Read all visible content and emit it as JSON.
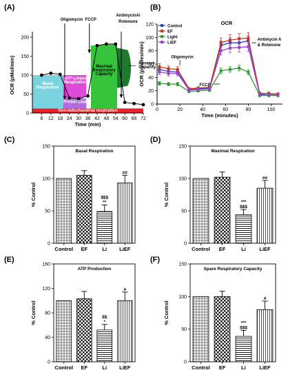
{
  "chart_data": [
    {
      "panel": "(A)",
      "type": "line",
      "ylabel": "OCR (pMol/min)",
      "xlabel": "Time (min)",
      "ylim": [
        0,
        200
      ],
      "xlim": [
        0,
        72
      ],
      "yticks": [
        "0",
        "50",
        "100",
        "150",
        "200"
      ],
      "xticks": [
        "6",
        "12",
        "18",
        "24",
        "30",
        "36",
        "42",
        "48",
        "54",
        "60",
        "66",
        "72"
      ],
      "x": [
        6,
        12,
        18,
        24,
        30,
        36,
        42,
        48,
        54,
        60,
        66,
        72
      ],
      "values": [
        100,
        105,
        102,
        40,
        38,
        45,
        178,
        182,
        182,
        28,
        25,
        22
      ],
      "regions": {
        "basal": "Basal Respiration",
        "atp": "ATP-Linked Respiration",
        "proton": "Proton Leak",
        "maximal": "Maximal Respiratory Capacity",
        "reserve": "Reserve Capacity",
        "nonmito": "Non-mitochondrial respiration"
      },
      "injections": [
        "Oligomycin",
        "FCCP",
        "AntimycinA/ Rotenone"
      ],
      "colors": {
        "basal": "#7ad4e0",
        "atp": "#e04ad8",
        "proton": "#b06ce0",
        "maximal": "#36c43c",
        "reserve": "#1e7a2e",
        "nonmito": "#e8222a"
      }
    },
    {
      "panel": "(B)",
      "type": "line",
      "title": "OCR",
      "ylabel": "OCR (pmoles/min)",
      "xlabel": "Time (minutes)",
      "ylim": [
        0,
        120
      ],
      "xlim": [
        0,
        110
      ],
      "yticks": [
        "0",
        "20",
        "40",
        "60",
        "80",
        "100",
        "120"
      ],
      "xticks": [
        "0",
        "20",
        "40",
        "60",
        "80",
        "100"
      ],
      "x": [
        2,
        10,
        18,
        28,
        36,
        46,
        56,
        64,
        72,
        80,
        90,
        98,
        106
      ],
      "series": [
        {
          "name": "Control",
          "color": "#2b3fcf",
          "values": [
            52,
            49,
            48,
            22,
            23,
            24,
            88,
            92,
            92,
            95,
            15,
            14,
            14
          ]
        },
        {
          "name": "EF",
          "color": "#c8371e",
          "values": [
            56,
            53,
            52,
            23,
            24,
            25,
            92,
            96,
            98,
            99,
            16,
            16,
            15
          ]
        },
        {
          "name": "Light",
          "color": "#2f9a2f",
          "values": [
            31,
            30,
            30,
            19,
            20,
            21,
            50,
            52,
            54,
            48,
            13,
            13,
            13
          ]
        },
        {
          "name": "LiEF",
          "color": "#9a3fd0",
          "values": [
            48,
            46,
            46,
            21,
            22,
            23,
            80,
            84,
            85,
            86,
            14,
            14,
            14
          ]
        }
      ],
      "annotations": [
        "Oligomycin",
        "FCCP",
        "Antimycin A & Rotenone"
      ]
    },
    {
      "panel": "(C)",
      "type": "bar",
      "title": "Basal Respiration",
      "ylabel": "% Control",
      "categories": [
        "Control",
        "EF",
        "Li",
        "LiEF"
      ],
      "values": [
        100,
        105,
        49,
        93
      ],
      "errors": [
        0,
        7,
        10,
        12
      ],
      "ylim": [
        0,
        150
      ],
      "yticks": [
        "0",
        "50",
        "100",
        "150"
      ],
      "signif": [
        "",
        "",
        "$$$\n**",
        "##"
      ]
    },
    {
      "panel": "(D)",
      "type": "bar",
      "title": "Maximal Respiration",
      "ylabel": "% Control",
      "categories": [
        "Control",
        "EF",
        "Li",
        "LiEF"
      ],
      "values": [
        100,
        102,
        44,
        85
      ],
      "errors": [
        0,
        8,
        8,
        12
      ],
      "ylim": [
        0,
        150
      ],
      "yticks": [
        "0",
        "50",
        "100",
        "150"
      ],
      "signif": [
        "",
        "",
        "***\n$$$",
        "##"
      ]
    },
    {
      "panel": "(E)",
      "type": "bar",
      "title": "ATP Production",
      "ylabel": "% Control",
      "categories": [
        "Control",
        "EF",
        "Li",
        "LiEF"
      ],
      "values": [
        100,
        103,
        52,
        100
      ],
      "errors": [
        0,
        12,
        9,
        14
      ],
      "ylim": [
        0,
        160
      ],
      "yticks": [
        "0",
        "40",
        "80",
        "120",
        "160"
      ],
      "signif": [
        "",
        "",
        "$$\n*",
        "#"
      ]
    },
    {
      "panel": "(F)",
      "type": "bar",
      "title": "Spare Respiratory Capacity",
      "ylabel": "% Control",
      "categories": [
        "Control",
        "EF",
        "Li",
        "LiEF"
      ],
      "values": [
        100,
        100,
        39,
        80
      ],
      "errors": [
        0,
        8,
        9,
        13
      ],
      "ylim": [
        0,
        150
      ],
      "yticks": [
        "0",
        "50",
        "100",
        "150"
      ],
      "signif": [
        "",
        "",
        "***\n$$$",
        "#"
      ]
    }
  ]
}
